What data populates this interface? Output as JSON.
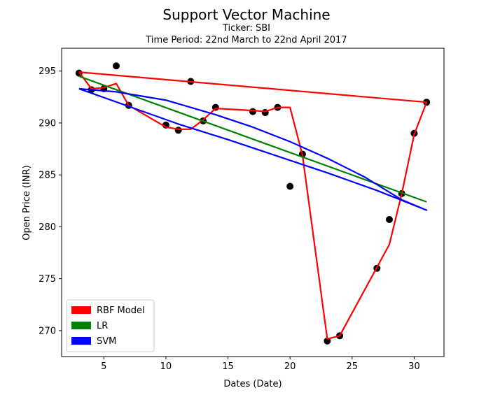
{
  "chart_data": {
    "type": "scatter",
    "title": "Support Vector Machine",
    "subtitle_lines": [
      "Ticker: SBI",
      "Time Period: 22nd March to 22nd April 2017"
    ],
    "xlabel": "Dates (Date)",
    "ylabel": "Open Price (INR)",
    "xlim": [
      1.6,
      32.4
    ],
    "ylim": [
      267.5,
      297.2
    ],
    "xticks": [
      5,
      10,
      15,
      20,
      25,
      30
    ],
    "yticks": [
      270,
      275,
      280,
      285,
      290,
      295
    ],
    "points": {
      "x": [
        3,
        4,
        5,
        6,
        7,
        10,
        11,
        12,
        13,
        14,
        17,
        18,
        19,
        20,
        21,
        23,
        24,
        27,
        28,
        29,
        30,
        31
      ],
      "y": [
        294.8,
        293.2,
        293.3,
        295.5,
        291.7,
        289.8,
        289.3,
        294.0,
        290.2,
        291.5,
        291.1,
        291.0,
        291.5,
        283.9,
        287.0,
        269.0,
        269.5,
        276.0,
        280.7,
        283.2,
        289.0,
        292.0
      ],
      "color": "#000000"
    },
    "series": [
      {
        "name": "RBF Model",
        "color": "#ff0000",
        "x": [
          3,
          4,
          5,
          6,
          7,
          10,
          11,
          12,
          13,
          14,
          17,
          18,
          19,
          20,
          21,
          23,
          24,
          27,
          28,
          29,
          30,
          31,
          3
        ],
        "y": [
          294.9,
          293.3,
          293.4,
          293.8,
          291.7,
          289.6,
          289.4,
          289.4,
          290.3,
          291.4,
          291.2,
          291.1,
          291.5,
          291.5,
          286.9,
          269.2,
          269.5,
          276.1,
          278.3,
          283.2,
          288.9,
          292.0,
          294.9
        ]
      },
      {
        "name": "LR",
        "color": "#008000",
        "x": [
          3,
          31
        ],
        "y": [
          294.5,
          282.4
        ]
      },
      {
        "name": "SVM",
        "color": "#0000ff",
        "x": [
          3,
          6,
          10,
          14,
          17,
          20,
          23,
          26,
          29,
          31,
          27,
          23,
          19,
          15,
          11,
          7,
          3
        ],
        "y": [
          293.3,
          293.0,
          292.2,
          290.8,
          289.6,
          288.2,
          286.6,
          284.8,
          282.6,
          281.6,
          283.5,
          285.2,
          286.8,
          288.4,
          289.9,
          291.6,
          293.3
        ]
      }
    ],
    "legend": {
      "placement": "lower-left",
      "entries": [
        "RBF Model",
        "LR",
        "SVM"
      ]
    },
    "grid": false
  }
}
